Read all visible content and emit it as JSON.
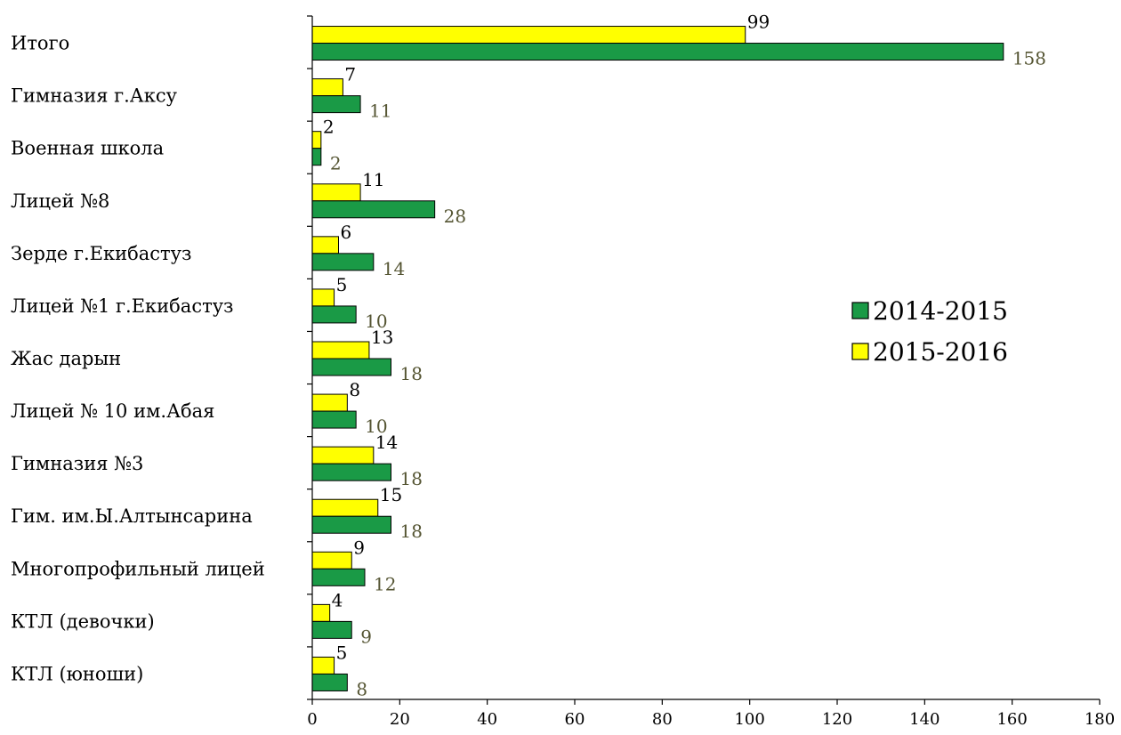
{
  "chart_data": {
    "type": "bar",
    "orientation": "horizontal",
    "title": "",
    "xlabel": "",
    "ylabel": "",
    "xlim": [
      0,
      180
    ],
    "x_ticks": [
      0,
      20,
      40,
      60,
      80,
      100,
      120,
      140,
      160,
      180
    ],
    "grid": false,
    "legend_position": "right",
    "categories": [
      "Итого",
      "Гимназия г.Аксу",
      "Военная школа",
      "Лицей №8",
      "Зерде г.Екибастуз",
      "Лицей №1 г.Екибастуз",
      "Жас дарын",
      "Лицей № 10 им.Абая",
      "Гимназия №3",
      "Гим. им.Ы.Алтынсарина",
      "Многопрофильный лицей",
      "КТЛ (девочки)",
      "КТЛ (юноши)"
    ],
    "series": [
      {
        "name": "2014-2015",
        "color": "#1a9a46",
        "values": [
          158,
          11,
          2,
          28,
          14,
          10,
          18,
          10,
          18,
          18,
          12,
          9,
          8
        ]
      },
      {
        "name": "2015-2016",
        "color": "#ffff00",
        "values": [
          99,
          7,
          2,
          11,
          6,
          5,
          13,
          8,
          14,
          15,
          9,
          4,
          5
        ]
      }
    ]
  }
}
